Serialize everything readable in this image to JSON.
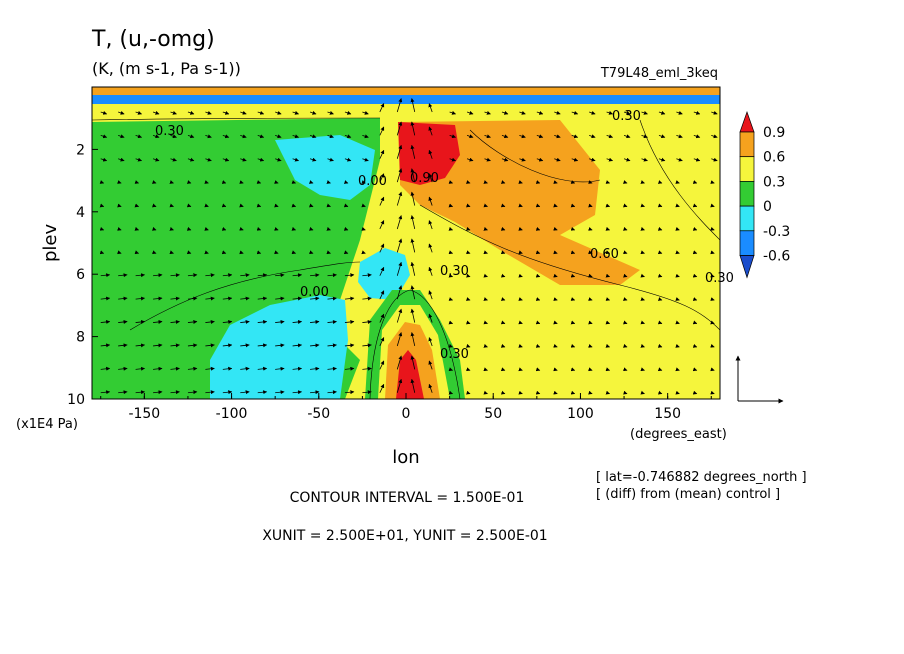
{
  "chart_data": {
    "type": "heatmap",
    "title": "T, (u,-omg)",
    "units": "(K, (m s-1, Pa s-1))",
    "experiment": "T79L48_eml_3keq",
    "xlabel": "lon",
    "ylabel": "plev",
    "x_units": "(degrees_east)",
    "y_units": "(x1E4 Pa)",
    "xlim": [
      -180,
      180
    ],
    "ylim": [
      10,
      0
    ],
    "x_ticks": [
      -150,
      -100,
      -50,
      0,
      50,
      100,
      150
    ],
    "y_ticks": [
      2,
      4,
      6,
      8,
      10
    ],
    "colorbar": {
      "levels": [
        0.9,
        0.6,
        0.3,
        0,
        -0.3,
        -0.6
      ],
      "colors": [
        "#e8151b",
        "#f5a21e",
        "#f5f53c",
        "#33cc33",
        "#33e6f5",
        "#1a8cff",
        "#1a4dcc"
      ]
    },
    "contour_labels": [
      "0.30",
      "0.00",
      "0.90",
      "0.60",
      "0.30",
      "0.30",
      "0.00",
      "0.30",
      "0.30"
    ],
    "notes": {
      "lat": "[ lat=-0.746882 degrees_north ]",
      "diff": "[ (diff) from (mean) control ]"
    },
    "contour_interval": "CONTOUR INTERVAL = 1.500E-01",
    "vector_units": "XUNIT = 2.500E+01, YUNIT = 2.500E-01",
    "grid": false
  }
}
